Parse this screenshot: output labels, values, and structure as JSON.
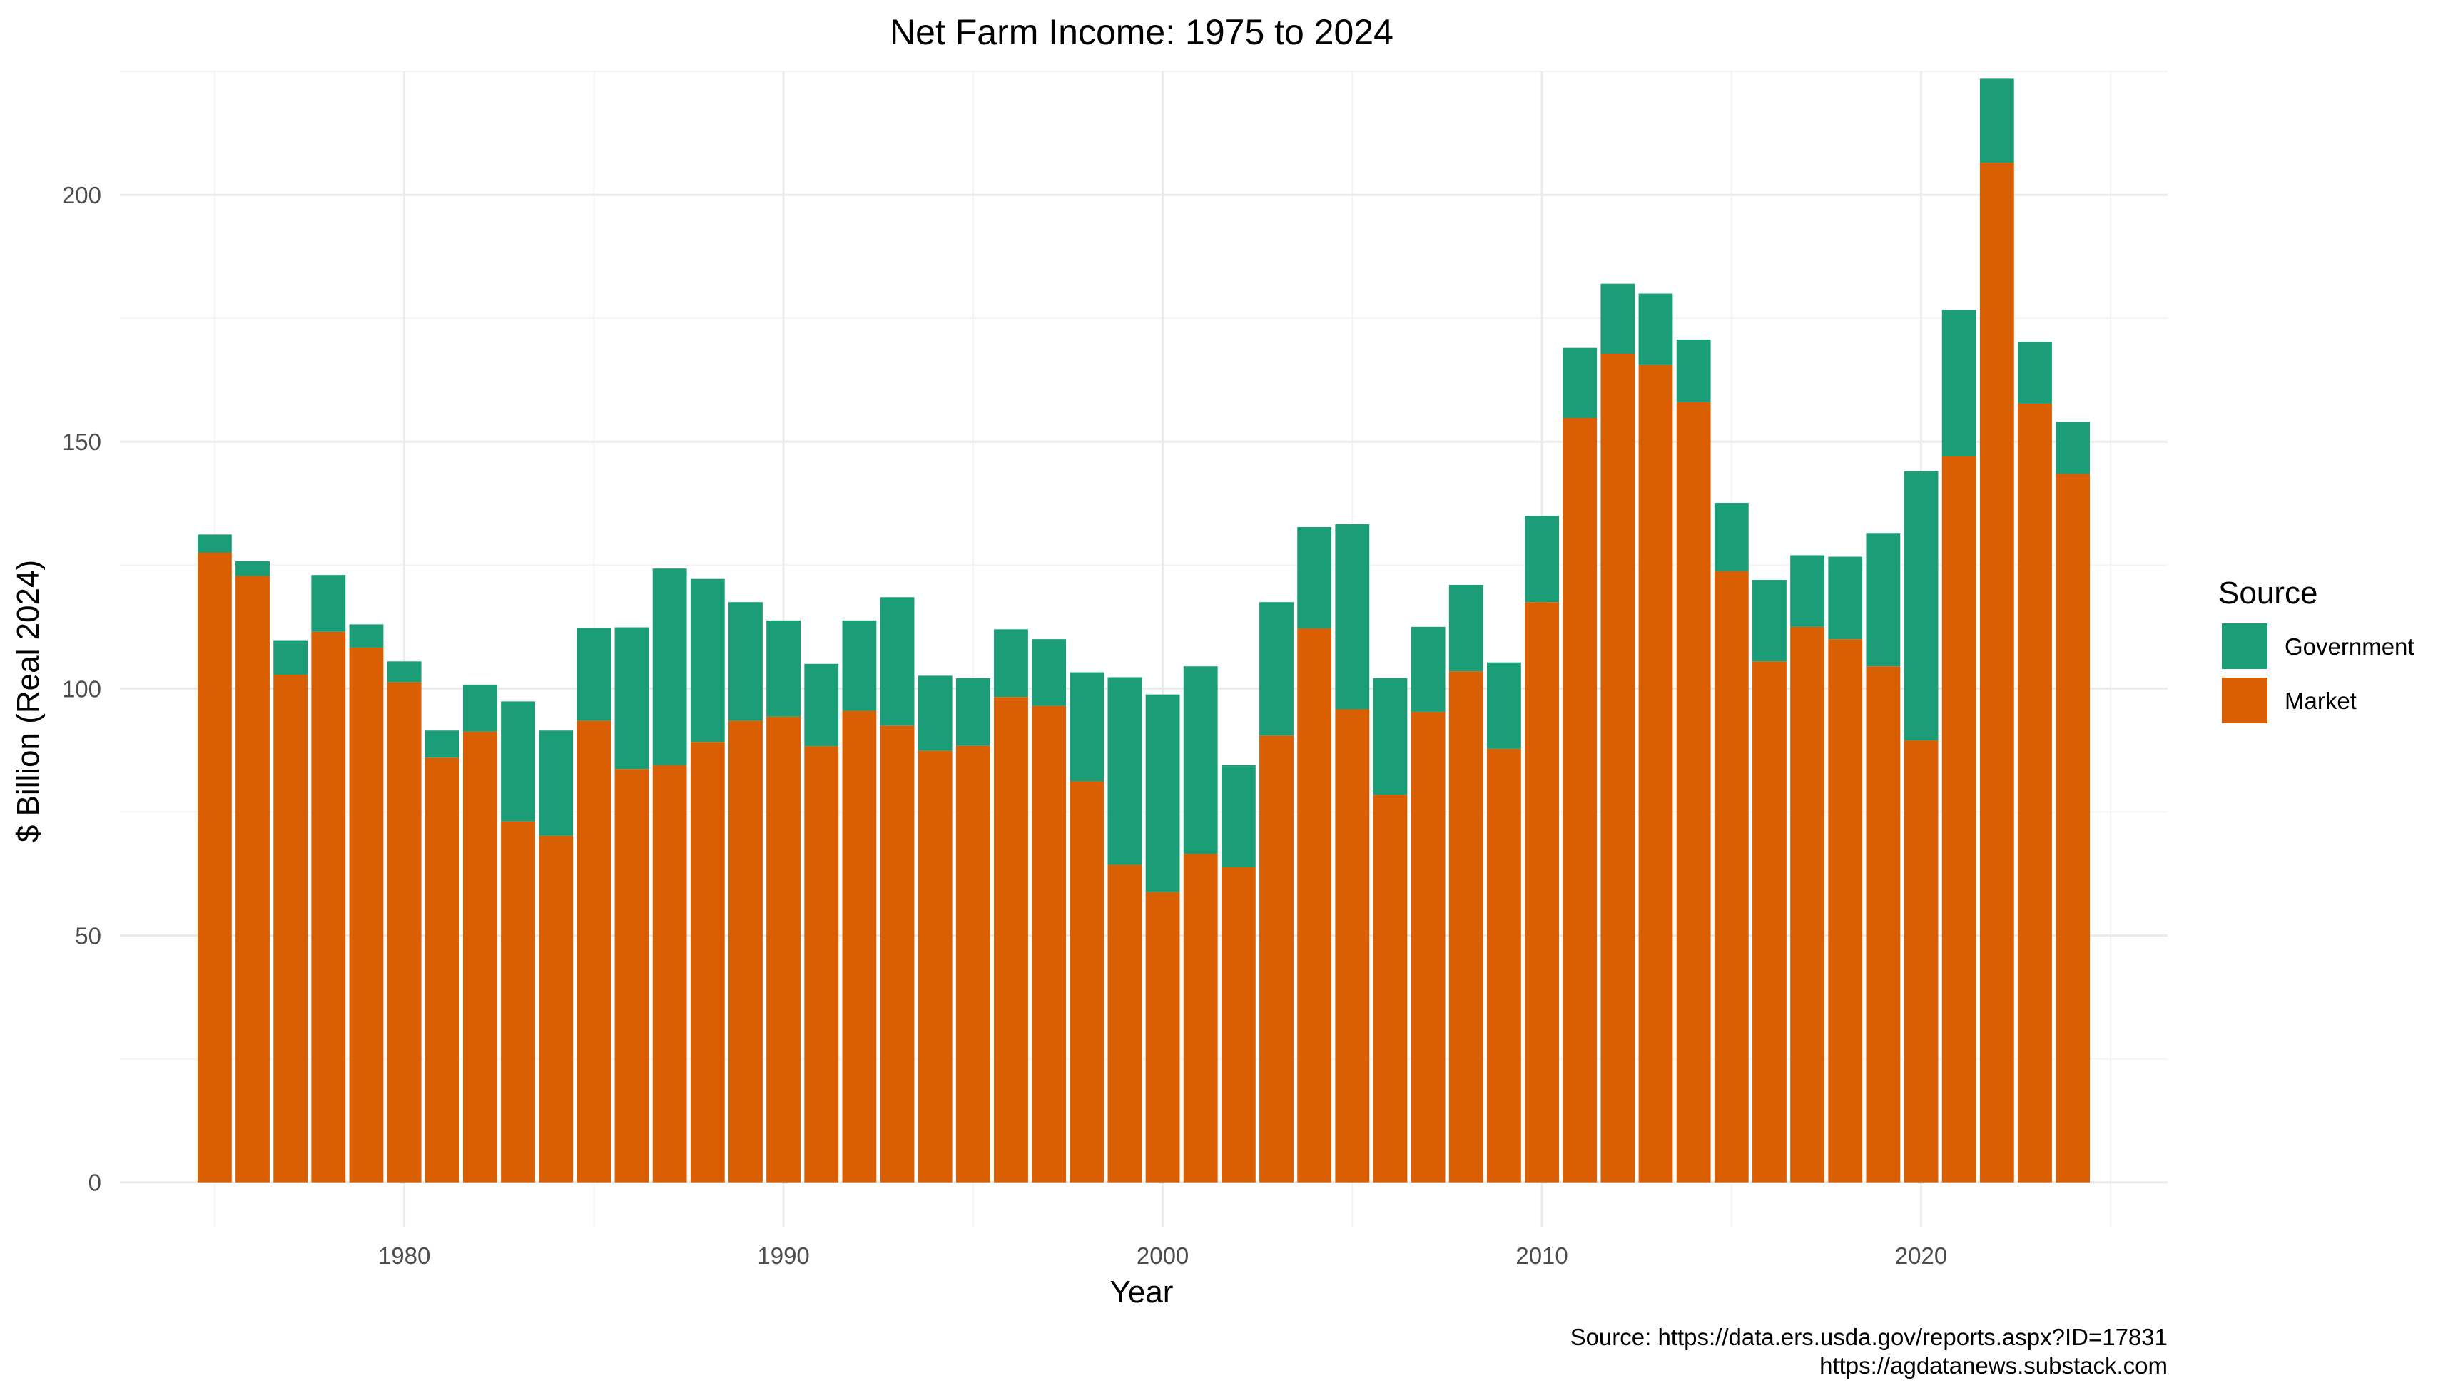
{
  "chart_data": {
    "type": "bar",
    "stacked": true,
    "title": "Net Farm Income: 1975 to 2024",
    "xlabel": "Year",
    "ylabel": "$ Billion (Real 2024)",
    "xlim": [
      1972.5,
      2026.5
    ],
    "ylim": [
      -9,
      225
    ],
    "x_ticks": [
      1980,
      1990,
      2000,
      2010,
      2020
    ],
    "y_ticks": [
      0,
      50,
      100,
      150,
      200
    ],
    "grid": true,
    "legend": {
      "title": "Source",
      "position": "right"
    },
    "x": [
      1975,
      1976,
      1977,
      1978,
      1979,
      1980,
      1981,
      1982,
      1983,
      1984,
      1985,
      1986,
      1987,
      1988,
      1989,
      1990,
      1991,
      1992,
      1993,
      1994,
      1995,
      1996,
      1997,
      1998,
      1999,
      2000,
      2001,
      2002,
      2003,
      2004,
      2005,
      2006,
      2007,
      2008,
      2009,
      2010,
      2011,
      2012,
      2013,
      2014,
      2015,
      2016,
      2017,
      2018,
      2019,
      2020,
      2021,
      2022,
      2023,
      2024
    ],
    "series": [
      {
        "name": "Market",
        "color": "#d95f02",
        "values": [
          127.5,
          122.8,
          102.8,
          111.5,
          108.3,
          101.3,
          86.0,
          91.3,
          73.1,
          70.2,
          93.5,
          83.7,
          84.5,
          89.2,
          93.5,
          94.3,
          88.3,
          95.5,
          92.5,
          87.4,
          88.4,
          98.3,
          96.5,
          81.2,
          64.3,
          58.8,
          66.5,
          63.8,
          90.5,
          112.2,
          95.8,
          78.5,
          95.3,
          103.5,
          87.8,
          117.5,
          154.8,
          167.8,
          165.5,
          158.0,
          123.8,
          105.5,
          112.5,
          110.0,
          104.5,
          89.5,
          147.0,
          206.5,
          157.7,
          143.5
        ]
      },
      {
        "name": "Government",
        "color": "#1b9e77",
        "values": [
          3.7,
          3.0,
          7.0,
          11.5,
          4.7,
          4.2,
          5.5,
          9.5,
          24.3,
          21.3,
          18.8,
          28.7,
          39.8,
          33.0,
          24.0,
          19.5,
          16.7,
          18.3,
          26.0,
          15.2,
          13.7,
          13.7,
          13.5,
          22.1,
          38.0,
          40.0,
          38.0,
          20.7,
          27.0,
          20.5,
          37.5,
          23.6,
          17.2,
          17.5,
          17.5,
          17.5,
          14.2,
          14.2,
          14.5,
          12.7,
          13.8,
          16.5,
          14.5,
          16.7,
          27.0,
          54.5,
          29.7,
          17.0,
          12.5,
          10.5
        ]
      }
    ]
  },
  "caption": {
    "line1": "Source: https://data.ers.usda.gov/reports.aspx?ID=17831",
    "line2": "https://agdatanews.substack.com"
  }
}
